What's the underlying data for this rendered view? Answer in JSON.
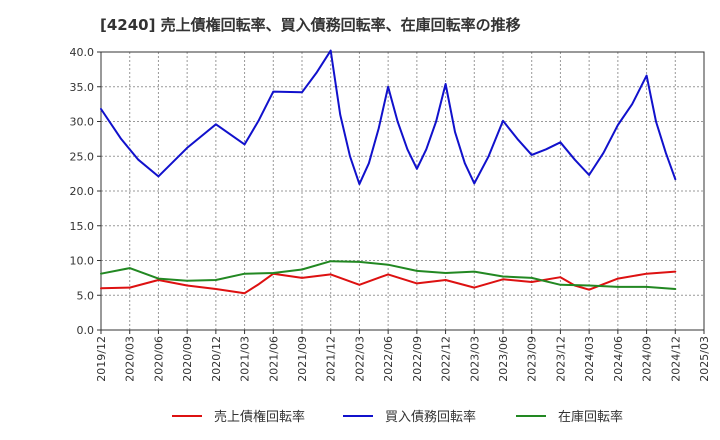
{
  "chart_data": {
    "type": "line",
    "title": "[4240]  売上債権回転率、買入債務回転率、在庫回転率の推移",
    "xlabel": "",
    "ylabel": "",
    "ylim": [
      0,
      40
    ],
    "yticks": [
      "0.0",
      "5.0",
      "10.0",
      "15.0",
      "20.0",
      "25.0",
      "30.0",
      "35.0",
      "40.0"
    ],
    "x_ticks": [
      "2019/12",
      "2020/03",
      "2020/06",
      "2020/09",
      "2020/12",
      "2021/03",
      "2021/06",
      "2021/09",
      "2021/12",
      "2022/03",
      "2022/06",
      "2022/09",
      "2022/12",
      "2023/03",
      "2023/06",
      "2023/09",
      "2023/12",
      "2024/03",
      "2024/06",
      "2024/09",
      "2024/12",
      "2025/03"
    ],
    "grid": true,
    "legend_position": "bottom",
    "series": [
      {
        "name": "売上債権回転率",
        "color": "#dd1111",
        "values": [
          [
            0,
            6.0
          ],
          [
            1,
            6.1
          ],
          [
            2,
            7.2
          ],
          [
            3,
            6.4
          ],
          [
            4,
            5.9
          ],
          [
            5,
            5.3
          ],
          [
            5.5,
            6.6
          ],
          [
            6,
            8.1
          ],
          [
            7,
            7.5
          ],
          [
            8,
            8.0
          ],
          [
            9,
            6.5
          ],
          [
            10,
            8.0
          ],
          [
            11,
            6.7
          ],
          [
            12,
            7.2
          ],
          [
            13,
            6.1
          ],
          [
            14,
            7.3
          ],
          [
            15,
            6.9
          ],
          [
            16,
            7.6
          ],
          [
            16.5,
            6.4
          ],
          [
            17,
            5.8
          ],
          [
            18,
            7.4
          ],
          [
            19,
            8.1
          ],
          [
            20,
            8.4
          ]
        ]
      },
      {
        "name": "買入債務回転率",
        "color": "#1111cc",
        "values": [
          [
            0,
            31.8
          ],
          [
            0.7,
            27.5
          ],
          [
            1.3,
            24.5
          ],
          [
            2,
            22.1
          ],
          [
            3,
            26.2
          ],
          [
            4,
            29.6
          ],
          [
            5,
            26.7
          ],
          [
            5.5,
            30.2
          ],
          [
            6,
            34.3
          ],
          [
            7,
            34.2
          ],
          [
            7.5,
            37.0
          ],
          [
            8,
            40.2
          ],
          [
            8.33,
            31.0
          ],
          [
            8.67,
            25.0
          ],
          [
            9,
            21.0
          ],
          [
            9.33,
            24.0
          ],
          [
            9.67,
            29.0
          ],
          [
            10,
            35.0
          ],
          [
            10.33,
            30.0
          ],
          [
            10.67,
            26.0
          ],
          [
            11,
            23.2
          ],
          [
            11.33,
            26.0
          ],
          [
            11.67,
            30.0
          ],
          [
            12,
            35.4
          ],
          [
            12.33,
            28.5
          ],
          [
            12.67,
            24.0
          ],
          [
            13,
            21.1
          ],
          [
            13.5,
            25.0
          ],
          [
            14,
            30.1
          ],
          [
            14.5,
            27.5
          ],
          [
            15,
            25.2
          ],
          [
            15.5,
            26.0
          ],
          [
            16,
            27.0
          ],
          [
            16.5,
            24.5
          ],
          [
            17,
            22.3
          ],
          [
            17.5,
            25.5
          ],
          [
            18,
            29.5
          ],
          [
            18.5,
            32.5
          ],
          [
            19,
            36.6
          ],
          [
            19.33,
            30.0
          ],
          [
            19.67,
            25.5
          ],
          [
            20,
            21.7
          ]
        ]
      },
      {
        "name": "在庫回転率",
        "color": "#228822",
        "values": [
          [
            0,
            8.1
          ],
          [
            1,
            8.9
          ],
          [
            2,
            7.4
          ],
          [
            3,
            7.1
          ],
          [
            4,
            7.2
          ],
          [
            5,
            8.1
          ],
          [
            6,
            8.2
          ],
          [
            7,
            8.7
          ],
          [
            8,
            9.9
          ],
          [
            9,
            9.8
          ],
          [
            10,
            9.4
          ],
          [
            11,
            8.5
          ],
          [
            12,
            8.2
          ],
          [
            13,
            8.4
          ],
          [
            14,
            7.7
          ],
          [
            15,
            7.5
          ],
          [
            16,
            6.5
          ],
          [
            17,
            6.4
          ],
          [
            18,
            6.2
          ],
          [
            19,
            6.2
          ],
          [
            20,
            5.9
          ]
        ]
      }
    ]
  }
}
